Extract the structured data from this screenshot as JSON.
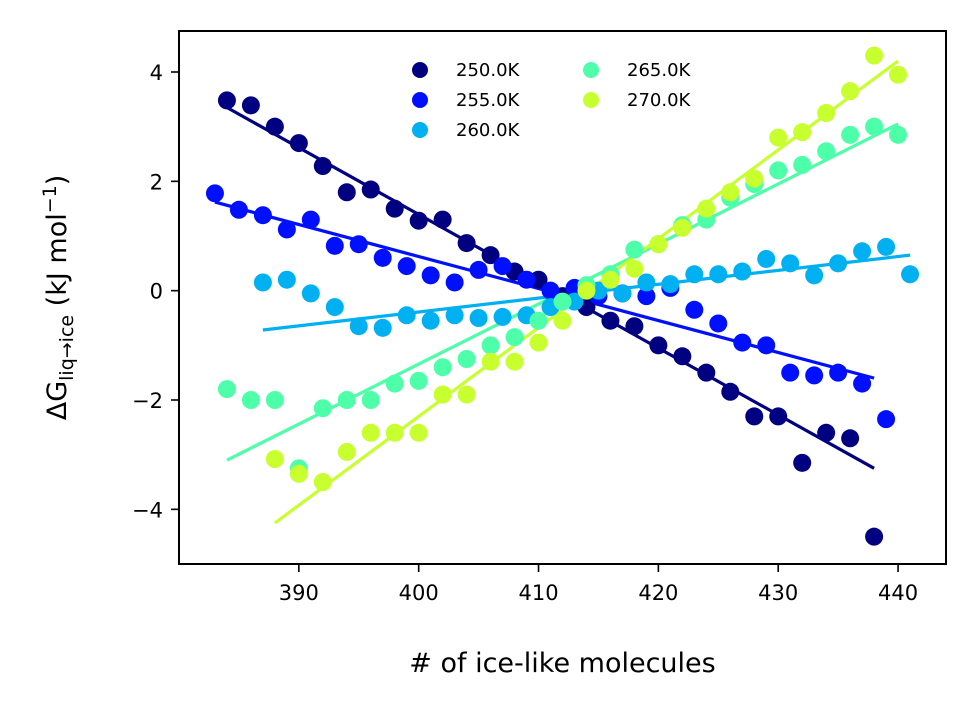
{
  "chart_data": {
    "type": "scatter",
    "xlabel": "# of ice-like molecules",
    "ylabel": {
      "prefix": "ΔG",
      "subscript": "liq→ice",
      "units": " (kJ mol",
      "units_sup": "−1",
      "units_end": ")"
    },
    "xlim": [
      380,
      444
    ],
    "ylim": [
      -5,
      4.75
    ],
    "xticks": [
      390,
      400,
      410,
      420,
      430,
      440
    ],
    "yticks": [
      -4,
      -2,
      0,
      2,
      4
    ],
    "ytick_labels": [
      "−4",
      "−2",
      "0",
      "2",
      "4"
    ],
    "grid": false,
    "legend": {
      "location": "top-center",
      "columns": 2
    },
    "series": [
      {
        "name": "250.0K",
        "color": "#000080",
        "x": [
          384,
          386,
          388,
          390,
          392,
          394,
          396,
          398,
          400,
          402,
          404,
          406,
          408,
          410,
          412,
          414,
          416,
          418,
          420,
          422,
          424,
          426,
          428,
          430,
          432,
          434,
          436,
          438
        ],
        "y": [
          3.48,
          3.39,
          3.0,
          2.7,
          2.28,
          1.8,
          1.85,
          1.5,
          1.28,
          1.3,
          0.87,
          0.65,
          0.35,
          0.2,
          -0.1,
          -0.3,
          -0.55,
          -0.65,
          -1.0,
          -1.2,
          -1.5,
          -1.85,
          -2.3,
          -2.3,
          -3.15,
          -2.6,
          -2.7,
          -4.5
        ],
        "fit": [
          [
            384,
            3.35
          ],
          [
            438,
            -3.25
          ]
        ]
      },
      {
        "name": "255.0K",
        "color": "#0010ff",
        "x": [
          383,
          385,
          387,
          389,
          391,
          393,
          395,
          397,
          399,
          401,
          403,
          405,
          407,
          409,
          411,
          413,
          415,
          417,
          419,
          421,
          423,
          425,
          427,
          429,
          431,
          433,
          435,
          437,
          439
        ],
        "y": [
          1.78,
          1.48,
          1.38,
          1.12,
          1.3,
          0.82,
          0.85,
          0.6,
          0.45,
          0.28,
          0.15,
          0.38,
          0.45,
          0.2,
          0.0,
          0.05,
          -0.1,
          -0.05,
          -0.1,
          0.05,
          -0.35,
          -0.6,
          -0.95,
          -1.0,
          -1.5,
          -1.55,
          -1.5,
          -1.7,
          -2.35
        ],
        "fit": [
          [
            383,
            1.62
          ],
          [
            438,
            -1.6
          ]
        ]
      },
      {
        "name": "260.0K",
        "color": "#00b0f0",
        "x": [
          387,
          389,
          391,
          393,
          395,
          397,
          399,
          401,
          403,
          405,
          407,
          409,
          411,
          413,
          415,
          417,
          419,
          421,
          423,
          425,
          427,
          429,
          431,
          433,
          435,
          437,
          439,
          441
        ],
        "y": [
          0.15,
          0.2,
          -0.05,
          -0.3,
          -0.65,
          -0.68,
          -0.45,
          -0.55,
          -0.45,
          -0.5,
          -0.48,
          -0.45,
          -0.3,
          -0.2,
          0.0,
          -0.05,
          0.15,
          0.12,
          0.3,
          0.3,
          0.35,
          0.58,
          0.5,
          0.28,
          0.5,
          0.72,
          0.8,
          0.3
        ],
        "fit": [
          [
            387,
            -0.72
          ],
          [
            441,
            0.65
          ]
        ]
      },
      {
        "name": "265.0K",
        "color": "#4dffa8",
        "x": [
          384,
          386,
          388,
          390,
          392,
          394,
          396,
          398,
          400,
          402,
          404,
          406,
          408,
          410,
          412,
          414,
          416,
          418,
          420,
          422,
          424,
          426,
          428,
          430,
          432,
          434,
          436,
          438,
          440
        ],
        "y": [
          -1.8,
          -2.0,
          -2.0,
          -3.25,
          -2.15,
          -2.0,
          -2.0,
          -1.7,
          -1.65,
          -1.4,
          -1.25,
          -1.0,
          -0.85,
          -0.55,
          -0.2,
          0.1,
          0.3,
          0.75,
          0.85,
          1.2,
          1.3,
          1.7,
          1.95,
          2.2,
          2.3,
          2.55,
          2.85,
          3.0,
          2.85
        ],
        "fit": [
          [
            384,
            -3.1
          ],
          [
            440,
            3.05
          ]
        ]
      },
      {
        "name": "270.0K",
        "color": "#c8ff2e",
        "x": [
          388,
          390,
          392,
          394,
          396,
          398,
          400,
          402,
          404,
          406,
          408,
          410,
          412,
          414,
          416,
          418,
          420,
          422,
          424,
          426,
          428,
          430,
          432,
          434,
          436,
          438,
          440
        ],
        "y": [
          -3.08,
          -3.35,
          -3.5,
          -2.95,
          -2.6,
          -2.6,
          -2.6,
          -1.9,
          -1.9,
          -1.3,
          -1.3,
          -0.95,
          -0.55,
          0.0,
          0.2,
          0.4,
          0.85,
          1.15,
          1.5,
          1.8,
          2.05,
          2.8,
          2.9,
          3.25,
          3.65,
          4.3,
          3.95
        ],
        "fit": [
          [
            388,
            -4.25
          ],
          [
            440,
            4.2
          ]
        ]
      }
    ]
  }
}
